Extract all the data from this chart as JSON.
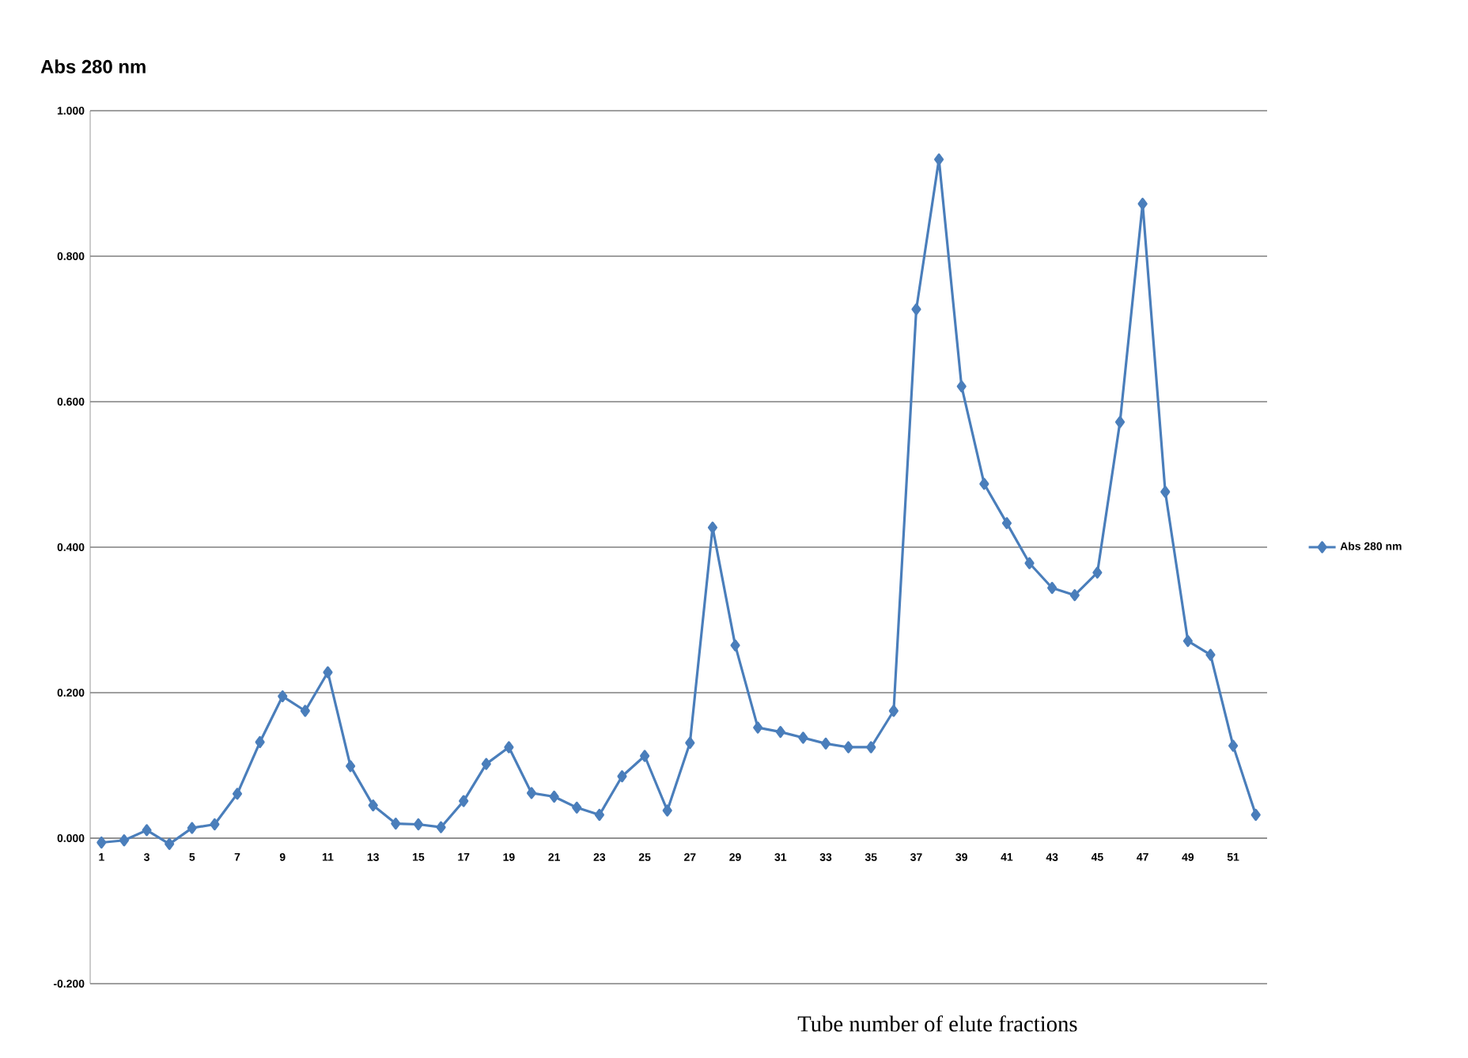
{
  "chart_data": {
    "type": "line",
    "title": "Abs 280 nm",
    "xlabel": "Tube number of elute fractions",
    "categories": [
      "1",
      null,
      "3",
      null,
      "5",
      null,
      "7",
      null,
      "9",
      null,
      "11",
      null,
      "13",
      null,
      "15",
      null,
      "17",
      null,
      "19",
      null,
      "21",
      null,
      "23",
      null,
      "25",
      null,
      "27",
      null,
      "29",
      null,
      "31",
      null,
      "33",
      null,
      "35",
      null,
      "37",
      null,
      "39",
      null,
      "41",
      null,
      "43",
      null,
      "45",
      null,
      "47",
      null,
      "49",
      null,
      "51",
      null
    ],
    "series": [
      {
        "name": "Abs 280 nm",
        "color": "#4a7ebb",
        "values": [
          -0.006,
          -0.003,
          0.011,
          -0.008,
          0.014,
          0.019,
          0.061,
          0.132,
          0.195,
          0.175,
          0.228,
          0.099,
          0.045,
          0.02,
          0.019,
          0.015,
          0.051,
          0.102,
          0.125,
          0.062,
          0.057,
          0.042,
          0.032,
          0.085,
          0.113,
          0.038,
          0.131,
          0.427,
          0.265,
          0.152,
          0.146,
          0.138,
          0.13,
          0.125,
          0.125,
          0.175,
          0.727,
          0.933,
          0.621,
          0.487,
          0.433,
          0.378,
          0.344,
          0.334,
          0.365,
          0.572,
          0.872,
          0.476,
          0.271,
          0.252,
          0.127,
          0.032
        ]
      }
    ],
    "ylim": [
      -0.2,
      1.0
    ],
    "yticks": [
      {
        "value": -0.2,
        "label": "-0.200"
      },
      {
        "value": 0,
        "label": "0.000"
      },
      {
        "value": 0.2,
        "label": "0.200"
      },
      {
        "value": 0.4,
        "label": "0.400"
      },
      {
        "value": 0.6,
        "label": "0.600"
      },
      {
        "value": 0.8,
        "label": "0.800"
      },
      {
        "value": 1.0,
        "label": "1.000"
      }
    ],
    "grid": "y",
    "legend": "right",
    "marker": "diamond",
    "line_style": "solid"
  }
}
